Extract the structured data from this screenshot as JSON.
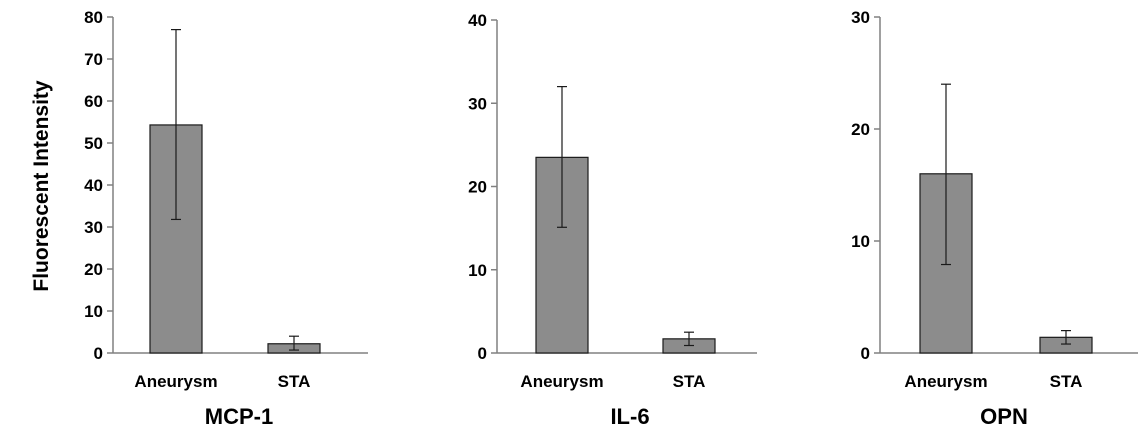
{
  "ylabel": "Fluorescent Intensity",
  "colors": {
    "bar_fill": "#8c8c8c",
    "bar_stroke": "#1a1a1a",
    "axis": "#808080",
    "error_bar": "#1a1a1a"
  },
  "chart_data": [
    {
      "type": "bar",
      "title": "MCP-1",
      "xlabel": "MCP-1",
      "ylabel": "Fluorescent Intensity",
      "categories": [
        "Aneurysm",
        "STA"
      ],
      "values": [
        54.3,
        2.2
      ],
      "error": {
        "low": [
          31.8,
          0.7
        ],
        "high": [
          77,
          4.0
        ]
      },
      "ylim": [
        0,
        80
      ],
      "yticks": [
        0,
        10,
        20,
        30,
        40,
        50,
        60,
        70,
        80
      ],
      "grid": false,
      "legend": "none"
    },
    {
      "type": "bar",
      "title": "IL-6",
      "xlabel": "IL-6",
      "ylabel": "",
      "categories": [
        "Aneurysm",
        "STA"
      ],
      "values": [
        23.5,
        1.7
      ],
      "error": {
        "low": [
          15.1,
          0.9
        ],
        "high": [
          32,
          2.5
        ]
      },
      "ylim": [
        0,
        40
      ],
      "yticks": [
        0,
        10,
        20,
        30,
        40
      ],
      "grid": false,
      "legend": "none"
    },
    {
      "type": "bar",
      "title": "OPN",
      "xlabel": "OPN",
      "ylabel": "",
      "categories": [
        "Aneurysm",
        "STA"
      ],
      "values": [
        16,
        1.4
      ],
      "error": {
        "low": [
          7.9,
          0.8
        ],
        "high": [
          24,
          2.0
        ]
      },
      "ylim": [
        0,
        30
      ],
      "yticks": [
        0,
        10,
        20,
        30
      ],
      "grid": false,
      "legend": "none"
    }
  ]
}
